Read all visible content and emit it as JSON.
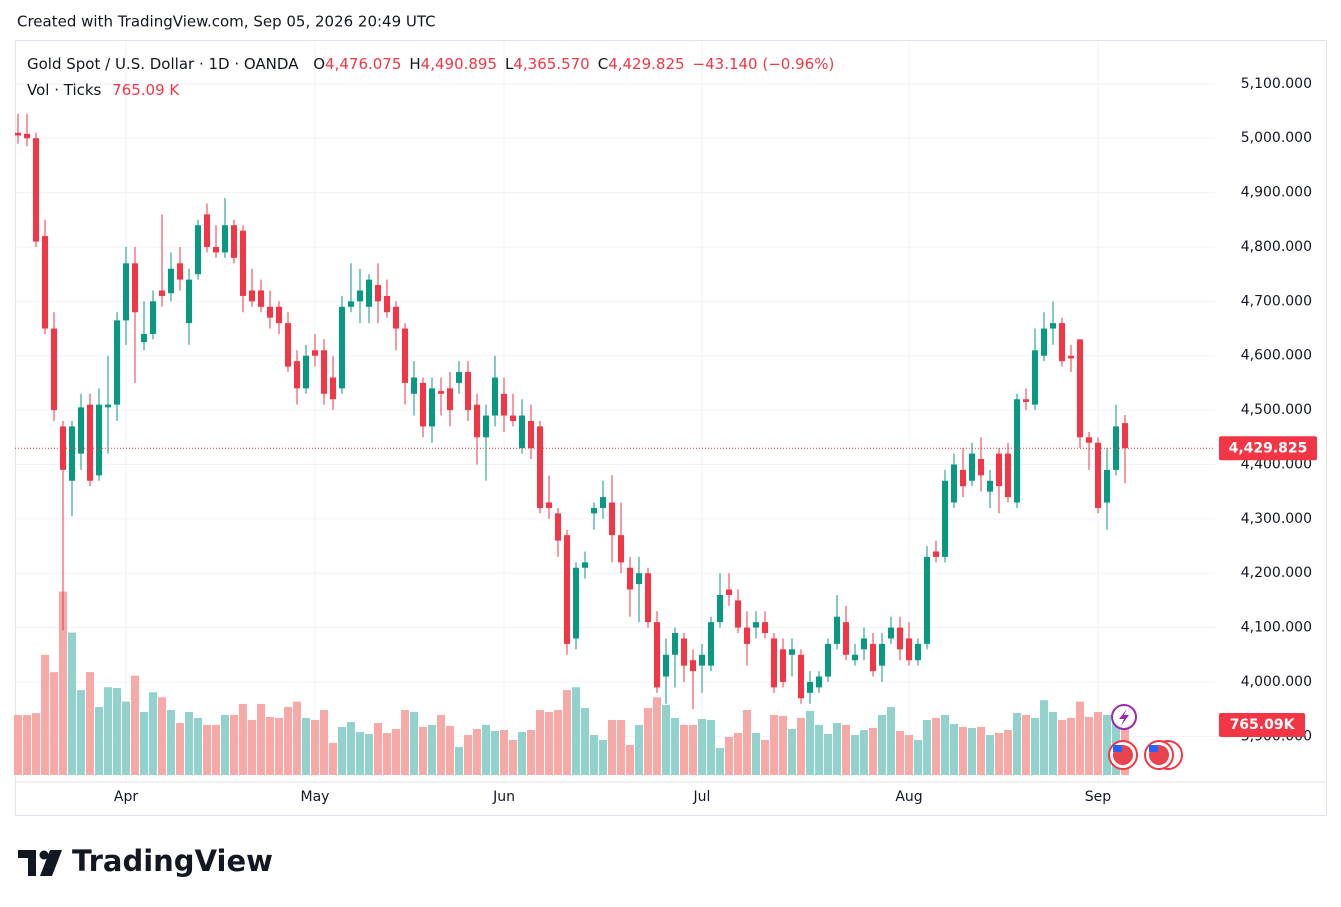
{
  "header": "Created with TradingView.com, Sep 05, 2026 20:49 UTC",
  "footer": {
    "brand": "TradingView"
  },
  "chart_data": {
    "type": "candlestick",
    "legend": {
      "symbol": "Gold Spot / U.S. Dollar · 1D · OANDA",
      "ohlc": [
        {
          "key": "O",
          "value": "4,476.075"
        },
        {
          "key": "H",
          "value": "4,490.895"
        },
        {
          "key": "L",
          "value": "4,365.570"
        },
        {
          "key": "C",
          "value": "4,429.825"
        }
      ],
      "change": "−43.140 (−0.96%)",
      "volume_name": "Vol · Ticks",
      "volume_value": "765.09 K"
    },
    "categories": [
      null,
      null,
      null,
      null,
      null,
      null,
      null,
      null,
      null,
      null,
      null,
      null,
      "Apr",
      null,
      null,
      null,
      null,
      null,
      null,
      null,
      null,
      null,
      null,
      null,
      null,
      null,
      null,
      null,
      null,
      null,
      null,
      null,
      null,
      "May",
      null,
      null,
      null,
      null,
      null,
      null,
      null,
      null,
      null,
      null,
      null,
      null,
      null,
      null,
      null,
      null,
      null,
      null,
      null,
      null,
      "Jun",
      null,
      null,
      null,
      null,
      null,
      null,
      null,
      null,
      null,
      null,
      null,
      null,
      null,
      null,
      null,
      null,
      null,
      null,
      null,
      null,
      null,
      "Jul",
      null,
      null,
      null,
      null,
      null,
      null,
      null,
      null,
      null,
      null,
      null,
      null,
      null,
      null,
      null,
      null,
      null,
      null,
      null,
      null,
      null,
      null,
      "Aug",
      null,
      null,
      null,
      null,
      null,
      null,
      null,
      null,
      null,
      null,
      null,
      null,
      null,
      null,
      null,
      null,
      null,
      null,
      null,
      null,
      "Sep",
      null,
      null,
      null
    ],
    "open": [
      5010,
      5008,
      5000,
      4820,
      4650,
      4470,
      4370,
      4420,
      4510,
      4380,
      4505,
      4510,
      4665,
      4770,
      4625,
      4640,
      4720,
      4715,
      4770,
      4660,
      4750,
      4860,
      4800,
      4790,
      4840,
      4830,
      4720,
      4720,
      4690,
      4690,
      4660,
      4590,
      4540,
      4610,
      4610,
      4560,
      4540,
      4690,
      4700,
      4690,
      4730,
      4710,
      4690,
      4650,
      4530,
      4550,
      4470,
      4535,
      4540,
      4550,
      4570,
      4510,
      4450,
      4490,
      4530,
      4490,
      4430,
      4480,
      4470,
      4330,
      4310,
      4270,
      4080,
      4210,
      4310,
      4320,
      4330,
      4270,
      4210,
      4180,
      4200,
      4110,
      4010,
      4050,
      4080,
      4040,
      4030,
      4030,
      4110,
      4170,
      4150,
      4100,
      4100,
      4110,
      4080,
      4060,
      4050,
      4050,
      3980,
      3990,
      4010,
      4070,
      4110,
      4040,
      4060,
      4070,
      4030,
      4080,
      4100,
      4080,
      4040,
      4070,
      4240,
      4230,
      4330,
      4390,
      4370,
      4410,
      4350,
      4420,
      4420,
      4330,
      4520,
      4510,
      4600,
      4650,
      4660,
      4600,
      4630,
      4450,
      4440,
      4330,
      4390,
      4476.075
    ],
    "high": [
      5045,
      5045,
      5010,
      4850,
      4680,
      4480,
      4480,
      4530,
      4530,
      4540,
      4600,
      4680,
      4800,
      4800,
      4700,
      4720,
      4860,
      4790,
      4800,
      4760,
      4850,
      4880,
      4840,
      4890,
      4850,
      4840,
      4760,
      4740,
      4720,
      4700,
      4680,
      4610,
      4620,
      4640,
      4630,
      4600,
      4710,
      4770,
      4760,
      4750,
      4770,
      4740,
      4700,
      4660,
      4590,
      4560,
      4560,
      4560,
      4570,
      4590,
      4590,
      4530,
      4510,
      4600,
      4560,
      4530,
      4520,
      4510,
      4480,
      4380,
      4320,
      4280,
      4220,
      4240,
      4330,
      4370,
      4380,
      4330,
      4230,
      4230,
      4210,
      4130,
      4080,
      4100,
      4090,
      4060,
      4070,
      4120,
      4200,
      4200,
      4170,
      4130,
      4130,
      4130,
      4090,
      4080,
      4080,
      4060,
      4020,
      4020,
      4080,
      4160,
      4140,
      4070,
      4100,
      4090,
      4090,
      4120,
      4120,
      4110,
      4080,
      4250,
      4260,
      4390,
      4420,
      4430,
      4440,
      4450,
      4390,
      4430,
      4440,
      4530,
      4540,
      4650,
      4680,
      4700,
      4670,
      4620,
      4630,
      4460,
      4450,
      4430,
      4510,
      4490.895
    ],
    "low": [
      4990,
      4985,
      4800,
      4640,
      4480,
      4095,
      4305,
      4390,
      4360,
      4370,
      4420,
      4480,
      4620,
      4550,
      4610,
      4630,
      4690,
      4700,
      4720,
      4620,
      4740,
      4790,
      4780,
      4780,
      4770,
      4680,
      4690,
      4680,
      4650,
      4640,
      4570,
      4510,
      4530,
      4580,
      4510,
      4500,
      4530,
      4680,
      4660,
      4660,
      4660,
      4670,
      4610,
      4510,
      4490,
      4450,
      4440,
      4490,
      4470,
      4530,
      4480,
      4400,
      4370,
      4470,
      4460,
      4470,
      4420,
      4410,
      4310,
      4300,
      4230,
      4050,
      4060,
      4190,
      4280,
      4300,
      4220,
      4200,
      4120,
      4110,
      4100,
      3980,
      3960,
      3990,
      4000,
      3950,
      3980,
      4020,
      4100,
      4140,
      4090,
      4030,
      4080,
      4080,
      3980,
      3990,
      4010,
      3960,
      3960,
      3980,
      4000,
      4060,
      4040,
      4030,
      4040,
      4010,
      4000,
      4070,
      4040,
      4030,
      4030,
      4060,
      4220,
      4220,
      4320,
      4340,
      4360,
      4350,
      4320,
      4310,
      4330,
      4320,
      4500,
      4500,
      4590,
      4620,
      4580,
      4570,
      4430,
      4390,
      4310,
      4280,
      4380,
      4365.57
    ],
    "close": [
      5005,
      5000,
      4810,
      4650,
      4500,
      4390,
      4470,
      4505,
      4370,
      4510,
      4510,
      4665,
      4770,
      4680,
      4640,
      4700,
      4710,
      4760,
      4740,
      4740,
      4840,
      4800,
      4790,
      4840,
      4780,
      4710,
      4700,
      4690,
      4670,
      4660,
      4580,
      4540,
      4600,
      4600,
      4530,
      4520,
      4690,
      4700,
      4720,
      4740,
      4700,
      4680,
      4650,
      4550,
      4560,
      4470,
      4540,
      4530,
      4500,
      4570,
      4500,
      4450,
      4490,
      4560,
      4490,
      4480,
      4490,
      4430,
      4320,
      4320,
      4260,
      4070,
      4210,
      4220,
      4320,
      4340,
      4270,
      4220,
      4170,
      4200,
      4110,
      3990,
      4050,
      4090,
      4030,
      4020,
      4050,
      4110,
      4160,
      4160,
      4100,
      4070,
      4110,
      4090,
      3990,
      4000,
      4060,
      3970,
      4000,
      4010,
      4070,
      4120,
      4050,
      4050,
      4080,
      4020,
      4070,
      4100,
      4060,
      4040,
      4070,
      4230,
      4230,
      4370,
      4400,
      4360,
      4420,
      4380,
      4370,
      4360,
      4340,
      4520,
      4515,
      4610,
      4650,
      4660,
      4590,
      4595,
      4450,
      4440,
      4320,
      4390,
      4470,
      4429.825
    ],
    "volume": [
      835000,
      835000,
      860000,
      1670000,
      1430000,
      2550000,
      1980000,
      1180000,
      1430000,
      945000,
      1220000,
      1210000,
      1020000,
      1380000,
      876000,
      1150000,
      1080000,
      904000,
      723000,
      876000,
      793000,
      696000,
      696000,
      835000,
      835000,
      988000,
      765000,
      988000,
      807000,
      793000,
      946000,
      1020000,
      793000,
      765000,
      904000,
      445000,
      668000,
      737000,
      598000,
      570000,
      723000,
      584000,
      640000,
      904000,
      876000,
      668000,
      696000,
      835000,
      682000,
      390000,
      556000,
      640000,
      696000,
      612000,
      626000,
      487000,
      598000,
      626000,
      904000,
      876000,
      904000,
      1180000,
      1220000,
      932000,
      556000,
      487000,
      765000,
      765000,
      417000,
      696000,
      932000,
      1080000,
      974000,
      793000,
      696000,
      696000,
      779000,
      765000,
      376000,
      529000,
      584000,
      904000,
      584000,
      487000,
      835000,
      821000,
      640000,
      793000,
      890000,
      696000,
      570000,
      723000,
      696000,
      556000,
      626000,
      654000,
      835000,
      946000,
      612000,
      556000,
      487000,
      765000,
      793000,
      835000,
      709000,
      668000,
      654000,
      668000,
      556000,
      584000,
      626000,
      862000,
      835000,
      793000,
      1040000,
      876000,
      765000,
      793000,
      1020000,
      807000,
      876000,
      835000,
      765000,
      765090
    ],
    "last_price_label": "4,429.825",
    "last_volume_label": "765.09K",
    "up_color": "#089981",
    "down_color": "#f23645",
    "volume_up_color": "#92d2cc",
    "volume_down_color": "#f7a9a7",
    "ylim": [
      3816,
      5177
    ],
    "vlim": [
      0,
      2780000
    ],
    "yticks": [
      {
        "value": 3900,
        "label": "3,900.000"
      },
      {
        "value": 4000,
        "label": "4,000.000"
      },
      {
        "value": 4100,
        "label": "4,100.000"
      },
      {
        "value": 4200,
        "label": "4,200.000"
      },
      {
        "value": 4300,
        "label": "4,300.000"
      },
      {
        "value": 4400,
        "label": "4,400.000"
      },
      {
        "value": 4500,
        "label": "4,500.000"
      },
      {
        "value": 4600,
        "label": "4,600.000"
      },
      {
        "value": 4700,
        "label": "4,700.000"
      },
      {
        "value": 4800,
        "label": "4,800.000"
      },
      {
        "value": 4900,
        "label": "4,900.000"
      },
      {
        "value": 5000,
        "label": "5,000.000"
      },
      {
        "value": 5100,
        "label": "5,100.000"
      }
    ],
    "grid": true
  }
}
